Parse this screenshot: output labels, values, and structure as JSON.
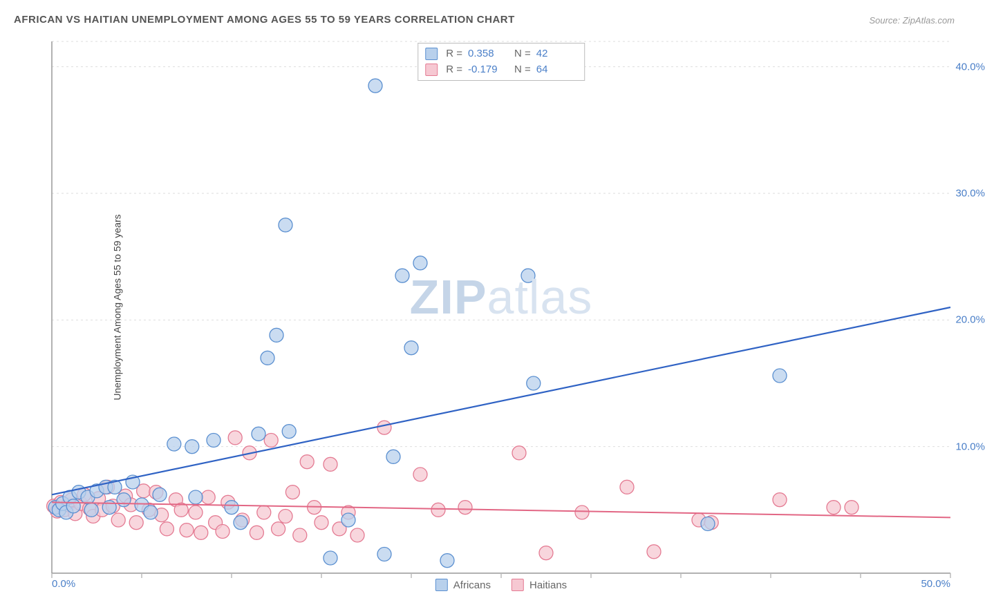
{
  "title": "AFRICAN VS HAITIAN UNEMPLOYMENT AMONG AGES 55 TO 59 YEARS CORRELATION CHART",
  "source": "Source: ZipAtlas.com",
  "watermark": {
    "bold": "ZIP",
    "light": "atlas"
  },
  "yaxis_label": "Unemployment Among Ages 55 to 59 years",
  "chart": {
    "type": "scatter",
    "background_color": "#ffffff",
    "grid_color": "#dddddd",
    "axis_color": "#999999",
    "tick_color": "#bbbbbb",
    "xlim": [
      0,
      50
    ],
    "ylim": [
      0,
      42
    ],
    "xtick_positions": [
      0,
      5,
      10,
      15,
      20,
      25,
      30,
      35,
      40,
      45,
      50
    ],
    "xtick_labels": {
      "0": "0.0%",
      "50": "50.0%"
    },
    "ytick_grid": [
      10,
      20,
      30,
      40
    ],
    "ytick_labels": [
      "10.0%",
      "20.0%",
      "30.0%",
      "40.0%"
    ],
    "tick_label_color": "#4a7fc8",
    "tick_label_fontsize": 15
  },
  "series": {
    "africans": {
      "label": "Africans",
      "marker_fill": "#b8d0ec",
      "marker_stroke": "#5a8fd0",
      "marker_opacity": 0.75,
      "marker_radius": 10,
      "line_color": "#2f62c4",
      "line_width": 2.2,
      "trend": {
        "x1": 0,
        "y1": 6.2,
        "x2": 50,
        "y2": 21.0
      },
      "R": "0.358",
      "N": "42",
      "points": [
        [
          0.2,
          5.2
        ],
        [
          0.4,
          5.0
        ],
        [
          0.6,
          5.5
        ],
        [
          0.8,
          4.8
        ],
        [
          1.0,
          6.0
        ],
        [
          1.2,
          5.3
        ],
        [
          1.5,
          6.4
        ],
        [
          2.0,
          6.0
        ],
        [
          2.2,
          5.0
        ],
        [
          2.5,
          6.5
        ],
        [
          3.0,
          6.8
        ],
        [
          3.2,
          5.2
        ],
        [
          3.5,
          6.8
        ],
        [
          4.0,
          5.8
        ],
        [
          4.5,
          7.2
        ],
        [
          5.0,
          5.4
        ],
        [
          5.5,
          4.8
        ],
        [
          6.0,
          6.2
        ],
        [
          6.8,
          10.2
        ],
        [
          7.8,
          10.0
        ],
        [
          8.0,
          6.0
        ],
        [
          9.0,
          10.5
        ],
        [
          10.0,
          5.2
        ],
        [
          10.5,
          4.0
        ],
        [
          11.5,
          11.0
        ],
        [
          12.0,
          17.0
        ],
        [
          12.5,
          18.8
        ],
        [
          13.0,
          27.5
        ],
        [
          13.2,
          11.2
        ],
        [
          15.5,
          1.2
        ],
        [
          16.5,
          4.2
        ],
        [
          18.0,
          38.5
        ],
        [
          18.5,
          1.5
        ],
        [
          19.0,
          9.2
        ],
        [
          19.5,
          23.5
        ],
        [
          20.0,
          17.8
        ],
        [
          20.5,
          24.5
        ],
        [
          22.0,
          1.0
        ],
        [
          26.5,
          23.5
        ],
        [
          26.8,
          15.0
        ],
        [
          36.5,
          3.9
        ],
        [
          40.5,
          15.6
        ]
      ]
    },
    "haitians": {
      "label": "Haitians",
      "marker_fill": "#f6c8d2",
      "marker_stroke": "#e47a92",
      "marker_opacity": 0.75,
      "marker_radius": 10,
      "line_color": "#e26684",
      "line_width": 2.0,
      "trend": {
        "x1": 0,
        "y1": 5.6,
        "x2": 50,
        "y2": 4.4
      },
      "R": "-0.179",
      "N": "64",
      "points": [
        [
          0.1,
          5.3
        ],
        [
          0.3,
          4.9
        ],
        [
          0.5,
          5.6
        ],
        [
          0.7,
          5.0
        ],
        [
          0.9,
          5.4
        ],
        [
          1.1,
          5.8
        ],
        [
          1.3,
          4.7
        ],
        [
          1.6,
          5.5
        ],
        [
          1.8,
          6.2
        ],
        [
          2.1,
          5.1
        ],
        [
          2.3,
          4.5
        ],
        [
          2.6,
          5.9
        ],
        [
          2.8,
          5.0
        ],
        [
          3.1,
          6.8
        ],
        [
          3.4,
          5.3
        ],
        [
          3.7,
          4.2
        ],
        [
          4.1,
          6.1
        ],
        [
          4.4,
          5.4
        ],
        [
          4.7,
          4.0
        ],
        [
          5.1,
          6.5
        ],
        [
          5.4,
          5.0
        ],
        [
          5.8,
          6.4
        ],
        [
          6.1,
          4.6
        ],
        [
          6.4,
          3.5
        ],
        [
          6.9,
          5.8
        ],
        [
          7.2,
          5.0
        ],
        [
          7.5,
          3.4
        ],
        [
          8.0,
          4.8
        ],
        [
          8.3,
          3.2
        ],
        [
          8.7,
          6.0
        ],
        [
          9.1,
          4.0
        ],
        [
          9.5,
          3.3
        ],
        [
          9.8,
          5.6
        ],
        [
          10.2,
          10.7
        ],
        [
          10.6,
          4.2
        ],
        [
          11.0,
          9.5
        ],
        [
          11.4,
          3.2
        ],
        [
          11.8,
          4.8
        ],
        [
          12.2,
          10.5
        ],
        [
          12.6,
          3.5
        ],
        [
          13.0,
          4.5
        ],
        [
          13.4,
          6.4
        ],
        [
          13.8,
          3.0
        ],
        [
          14.2,
          8.8
        ],
        [
          14.6,
          5.2
        ],
        [
          15.0,
          4.0
        ],
        [
          15.5,
          8.6
        ],
        [
          16.0,
          3.5
        ],
        [
          16.5,
          4.8
        ],
        [
          17.0,
          3.0
        ],
        [
          18.5,
          11.5
        ],
        [
          20.5,
          7.8
        ],
        [
          21.5,
          5.0
        ],
        [
          23.0,
          5.2
        ],
        [
          26.0,
          9.5
        ],
        [
          27.5,
          1.6
        ],
        [
          29.5,
          4.8
        ],
        [
          32.0,
          6.8
        ],
        [
          33.5,
          1.7
        ],
        [
          36.0,
          4.2
        ],
        [
          36.7,
          4.0
        ],
        [
          40.5,
          5.8
        ],
        [
          43.5,
          5.2
        ],
        [
          44.5,
          5.2
        ]
      ]
    }
  },
  "stats_labels": {
    "R": "R  =",
    "N": "N  ="
  },
  "legend": [
    {
      "key": "africans",
      "label": "Africans"
    },
    {
      "key": "haitians",
      "label": "Haitians"
    }
  ]
}
